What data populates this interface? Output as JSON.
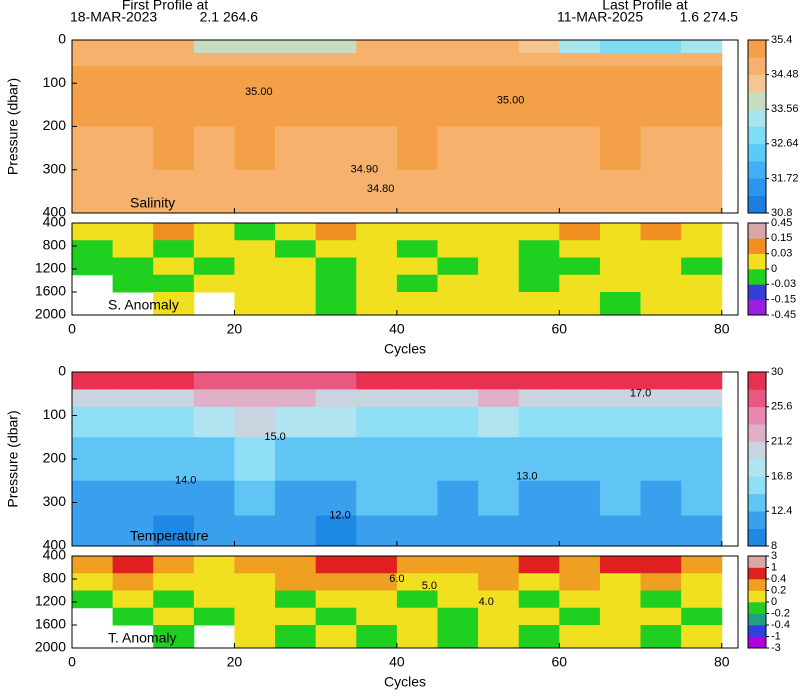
{
  "header": {
    "first_label": "First Profile at",
    "first_date": "18-MAR-2023",
    "first_pos": "2.1 264.6",
    "last_label": "Last Profile at",
    "last_date": "11-MAR-2025",
    "last_pos": "1.6 274.5"
  },
  "chart_data": [
    {
      "type": "heatmap",
      "title": "Salinity",
      "ylabel": "Pressure (dbar)",
      "y_reversed": true,
      "xlim": [
        0,
        82
      ],
      "xticks": [
        0,
        20,
        40,
        60,
        80
      ],
      "ylim": [
        0,
        400
      ],
      "yticks": [
        0,
        100,
        200,
        300,
        400
      ],
      "xbins": [
        0,
        5,
        10,
        15,
        20,
        25,
        30,
        35,
        40,
        45,
        50,
        55,
        60,
        65,
        70,
        75,
        80
      ],
      "ybins": [
        0,
        30,
        60,
        120,
        200,
        300,
        400
      ],
      "values": [
        [
          34.7,
          34.7,
          34.6,
          34.0,
          33.9,
          33.9,
          33.9,
          34.5,
          34.6,
          34.6,
          34.5,
          34.4,
          33.2,
          33.0,
          33.0,
          33.1
        ],
        [
          34.9,
          34.9,
          34.9,
          34.8,
          34.9,
          34.9,
          34.8,
          34.8,
          34.9,
          34.9,
          34.8,
          34.8,
          34.9,
          34.9,
          34.9,
          34.8
        ],
        [
          35.0,
          35.0,
          35.1,
          35.1,
          35.2,
          35.1,
          35.1,
          35.0,
          35.0,
          35.1,
          35.1,
          35.0,
          35.0,
          35.0,
          35.0,
          35.0
        ],
        [
          34.95,
          35.0,
          35.05,
          35.1,
          35.15,
          35.1,
          35.05,
          35.0,
          35.0,
          35.05,
          35.05,
          35.0,
          34.95,
          34.95,
          35.0,
          34.95
        ],
        [
          34.9,
          34.9,
          34.95,
          34.9,
          34.95,
          34.9,
          34.9,
          34.9,
          34.95,
          34.9,
          34.9,
          34.9,
          34.9,
          34.95,
          34.9,
          34.9
        ],
        [
          34.8,
          34.8,
          34.8,
          34.8,
          34.8,
          34.8,
          34.8,
          34.8,
          34.8,
          34.8,
          34.8,
          34.8,
          34.8,
          34.8,
          34.8,
          34.8
        ]
      ],
      "colorbar": {
        "ticks": [
          30.8,
          31.72,
          32.64,
          33.56,
          34.48,
          35.4
        ],
        "colors": [
          "#1e7ee0",
          "#2a96ee",
          "#3fb0f5",
          "#5ccaf7",
          "#7fdcf5",
          "#a8e6ee",
          "#c8dcc0",
          "#f7c590",
          "#f6b26c",
          "#f4a048"
        ]
      },
      "annotations": [
        {
          "text": "35.00",
          "x": 23,
          "y": 120
        },
        {
          "text": "35.00",
          "x": 54,
          "y": 140
        },
        {
          "text": "34.90",
          "x": 36,
          "y": 300
        },
        {
          "text": "34.80",
          "x": 38,
          "y": 345
        }
      ]
    },
    {
      "type": "heatmap",
      "title": "S. Anomaly",
      "xlabel": "Cycles",
      "y_reversed": true,
      "xlim": [
        0,
        82
      ],
      "xticks": [
        0,
        20,
        40,
        60,
        80
      ],
      "ylim": [
        400,
        2000
      ],
      "yticks": [
        400,
        800,
        1200,
        1600,
        2000
      ],
      "xbins": [
        0,
        5,
        10,
        15,
        20,
        25,
        30,
        35,
        40,
        45,
        50,
        55,
        60,
        65,
        70,
        75,
        80
      ],
      "ybins": [
        400,
        700,
        1000,
        1300,
        1600,
        2000
      ],
      "values": [
        [
          0.02,
          0.01,
          0.04,
          0.01,
          -0.01,
          0.02,
          0.03,
          0.02,
          0.01,
          0.02,
          0.01,
          0.02,
          0.04,
          0.02,
          0.05,
          0.02
        ],
        [
          -0.01,
          0.01,
          -0.01,
          0.01,
          0.01,
          -0.01,
          0.02,
          0.01,
          -0.01,
          0.01,
          0.01,
          -0.01,
          0.01,
          0.01,
          0.01,
          0.01
        ],
        [
          -0.01,
          -0.01,
          0.01,
          -0.01,
          0.01,
          0.01,
          -0.01,
          0.01,
          0.01,
          -0.01,
          0.01,
          -0.01,
          -0.01,
          0.01,
          0.01,
          -0.01
        ],
        [
          null,
          -0.01,
          -0.01,
          0.01,
          0.01,
          0.01,
          -0.01,
          0.01,
          -0.01,
          0.01,
          0.01,
          -0.01,
          0.01,
          0.01,
          0.01,
          0.01
        ],
        [
          null,
          null,
          0.01,
          null,
          0.01,
          0.01,
          -0.01,
          0.01,
          0.01,
          0.01,
          0.01,
          0.01,
          0.01,
          -0.01,
          0.01,
          0.01
        ]
      ],
      "colorbar": {
        "ticks": [
          -0.45,
          -0.15,
          -0.03,
          0,
          0.03,
          0.15,
          0.45
        ],
        "colors": [
          "#9a20e0",
          "#3040d8",
          "#20d020",
          "#f0e020",
          "#f09020",
          "#d8a8a8"
        ]
      }
    },
    {
      "type": "heatmap",
      "title": "Temperature",
      "ylabel": "Pressure (dbar)",
      "y_reversed": true,
      "xlim": [
        0,
        82
      ],
      "xticks": [
        0,
        20,
        40,
        60,
        80
      ],
      "ylim": [
        0,
        400
      ],
      "yticks": [
        0,
        100,
        200,
        300,
        400
      ],
      "xbins": [
        0,
        5,
        10,
        15,
        20,
        25,
        30,
        35,
        40,
        45,
        50,
        55,
        60,
        65,
        70,
        75,
        80
      ],
      "ybins": [
        0,
        40,
        80,
        150,
        250,
        330,
        400
      ],
      "values": [
        [
          28,
          28,
          28,
          27,
          27,
          27,
          27,
          28,
          28,
          28,
          28,
          28,
          28,
          28,
          28,
          28
        ],
        [
          20,
          20,
          19,
          22,
          23,
          22,
          21,
          20,
          19,
          20,
          22,
          19,
          20,
          19,
          19,
          19
        ],
        [
          16,
          16,
          15,
          18,
          19,
          17,
          17,
          16,
          16,
          16,
          18,
          16,
          16,
          16,
          16,
          16
        ],
        [
          14,
          14,
          13,
          14,
          15,
          14,
          13,
          14,
          14,
          13,
          14,
          14,
          14,
          14,
          14,
          14
        ],
        [
          12,
          12,
          11.5,
          12,
          12.5,
          12,
          11.5,
          12.5,
          12.5,
          12,
          12.5,
          12,
          12,
          12.5,
          12,
          12.5
        ],
        [
          10.5,
          10.5,
          10,
          10.5,
          11,
          10.5,
          10,
          11,
          11,
          10.5,
          11,
          10.5,
          10.5,
          11,
          10.5,
          11
        ]
      ],
      "colorbar": {
        "ticks": [
          8,
          12.4,
          16.8,
          21.2,
          25.6,
          30
        ],
        "colors": [
          "#1e88e5",
          "#3aa0ee",
          "#60c4f5",
          "#90e0f5",
          "#b0e4f0",
          "#c8d4e0",
          "#e0b0c8",
          "#e888b0",
          "#e85880",
          "#e83050"
        ]
      },
      "annotations": [
        {
          "text": "17.0",
          "x": 70,
          "y": 50
        },
        {
          "text": "15.0",
          "x": 25,
          "y": 150
        },
        {
          "text": "14.0",
          "x": 14,
          "y": 250
        },
        {
          "text": "13.0",
          "x": 56,
          "y": 240
        },
        {
          "text": "12.0",
          "x": 33,
          "y": 330
        }
      ]
    },
    {
      "type": "heatmap",
      "title": "T. Anomaly",
      "xlabel": "Cycles",
      "y_reversed": true,
      "xlim": [
        0,
        82
      ],
      "xticks": [
        0,
        20,
        40,
        60,
        80
      ],
      "ylim": [
        400,
        2000
      ],
      "yticks": [
        400,
        800,
        1200,
        1600,
        2000
      ],
      "xbins": [
        0,
        5,
        10,
        15,
        20,
        25,
        30,
        35,
        40,
        45,
        50,
        55,
        60,
        65,
        70,
        75,
        80
      ],
      "ybins": [
        400,
        700,
        1000,
        1300,
        1600,
        2000
      ],
      "values": [
        [
          0.3,
          0.5,
          0.3,
          0.1,
          0.2,
          0.3,
          0.6,
          0.5,
          0.3,
          0.2,
          0.3,
          0.4,
          0.3,
          0.5,
          0.6,
          0.3
        ],
        [
          0.1,
          0.2,
          0.1,
          0.0,
          0.1,
          0.2,
          0.3,
          0.2,
          0.1,
          0.1,
          0.2,
          0.1,
          0.2,
          0.1,
          0.2,
          0.1
        ],
        [
          -0.1,
          0.1,
          -0.1,
          0.1,
          0.1,
          -0.1,
          0.1,
          0.1,
          -0.1,
          0.1,
          0.1,
          -0.1,
          0.1,
          0.1,
          -0.1,
          0.1
        ],
        [
          null,
          -0.1,
          0.1,
          -0.1,
          0.1,
          0.1,
          -0.1,
          0.1,
          0.1,
          -0.1,
          0.1,
          0.1,
          -0.1,
          0.1,
          0.1,
          -0.1
        ],
        [
          null,
          null,
          -0.1,
          null,
          0.1,
          -0.1,
          0.1,
          -0.1,
          0.1,
          -0.1,
          0.1,
          -0.1,
          0.1,
          0.1,
          -0.1,
          0.1
        ]
      ],
      "colorbar": {
        "ticks": [
          -3,
          -1,
          -0.4,
          -0.2,
          0,
          0.2,
          0.4,
          1,
          3
        ],
        "colors": [
          "#b000e0",
          "#3040e0",
          "#20a080",
          "#20d020",
          "#f0e020",
          "#f0a020",
          "#e02020",
          "#d8a8a8"
        ]
      },
      "annotations": [
        {
          "text": "6.0",
          "x": 40,
          "y": 800
        },
        {
          "text": "5.0",
          "x": 44,
          "y": 920
        },
        {
          "text": "4.0",
          "x": 51,
          "y": 1200
        }
      ]
    }
  ]
}
